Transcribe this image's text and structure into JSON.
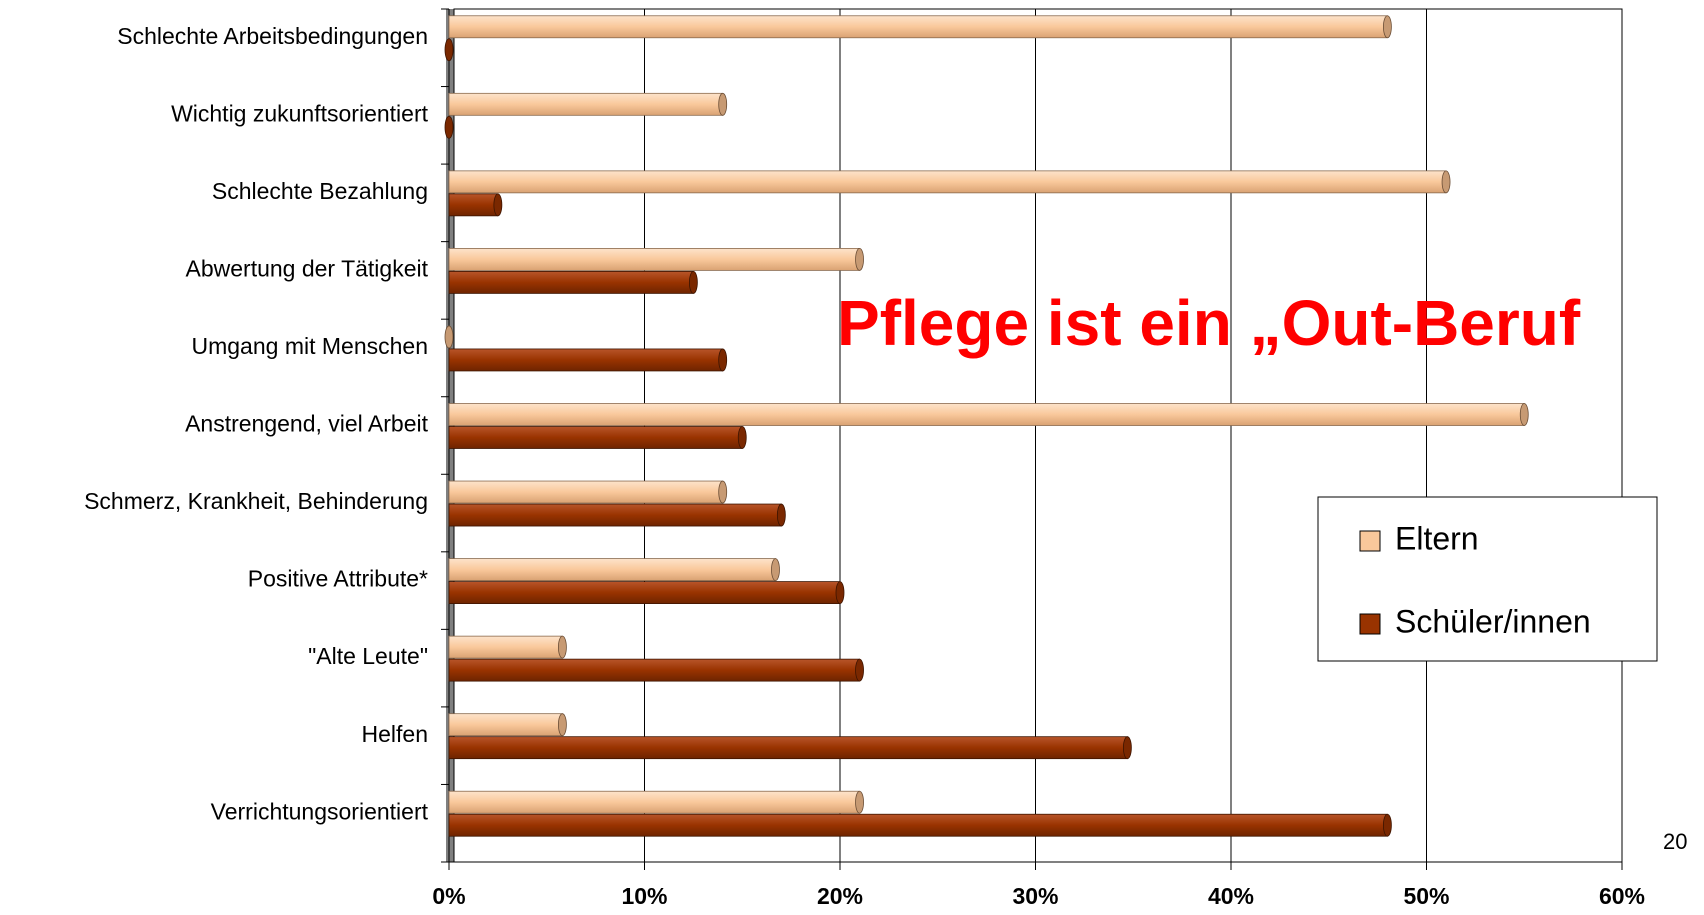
{
  "chart_data": {
    "type": "bar",
    "orientation": "horizontal",
    "categories": [
      "Schlechte Arbeitsbedingungen",
      "Wichtig zukunftsorientiert",
      "Schlechte Bezahlung",
      "Abwertung der Tätigkeit",
      "Umgang mit Menschen",
      "Anstrengend, viel Arbeit",
      "Schmerz, Krankheit, Behinderung",
      "Positive Attribute*",
      "\"Alte Leute\"",
      "Helfen",
      "Verrichtungsorientiert"
    ],
    "series": [
      {
        "name": "Eltern",
        "color": "#f9c89b",
        "values": [
          48,
          14,
          51,
          21,
          0,
          55,
          14,
          16.7,
          5.8,
          5.8,
          21
        ]
      },
      {
        "name": "Schüler/innen",
        "color": "#993300",
        "values": [
          0,
          0,
          2.5,
          12.5,
          14,
          15,
          17,
          20,
          21,
          34.7,
          48
        ]
      }
    ],
    "xlim": [
      0,
      60
    ],
    "xticks": [
      {
        "value": 0,
        "label": "0%"
      },
      {
        "value": 10,
        "label": "10%"
      },
      {
        "value": 20,
        "label": "20%"
      },
      {
        "value": 30,
        "label": "30%"
      },
      {
        "value": 40,
        "label": "40%"
      },
      {
        "value": 50,
        "label": "50%"
      },
      {
        "value": 60,
        "label": "60%"
      }
    ],
    "grid": true,
    "annotation": "Pflege ist ein „Out-Beruf",
    "page_number": "20"
  }
}
